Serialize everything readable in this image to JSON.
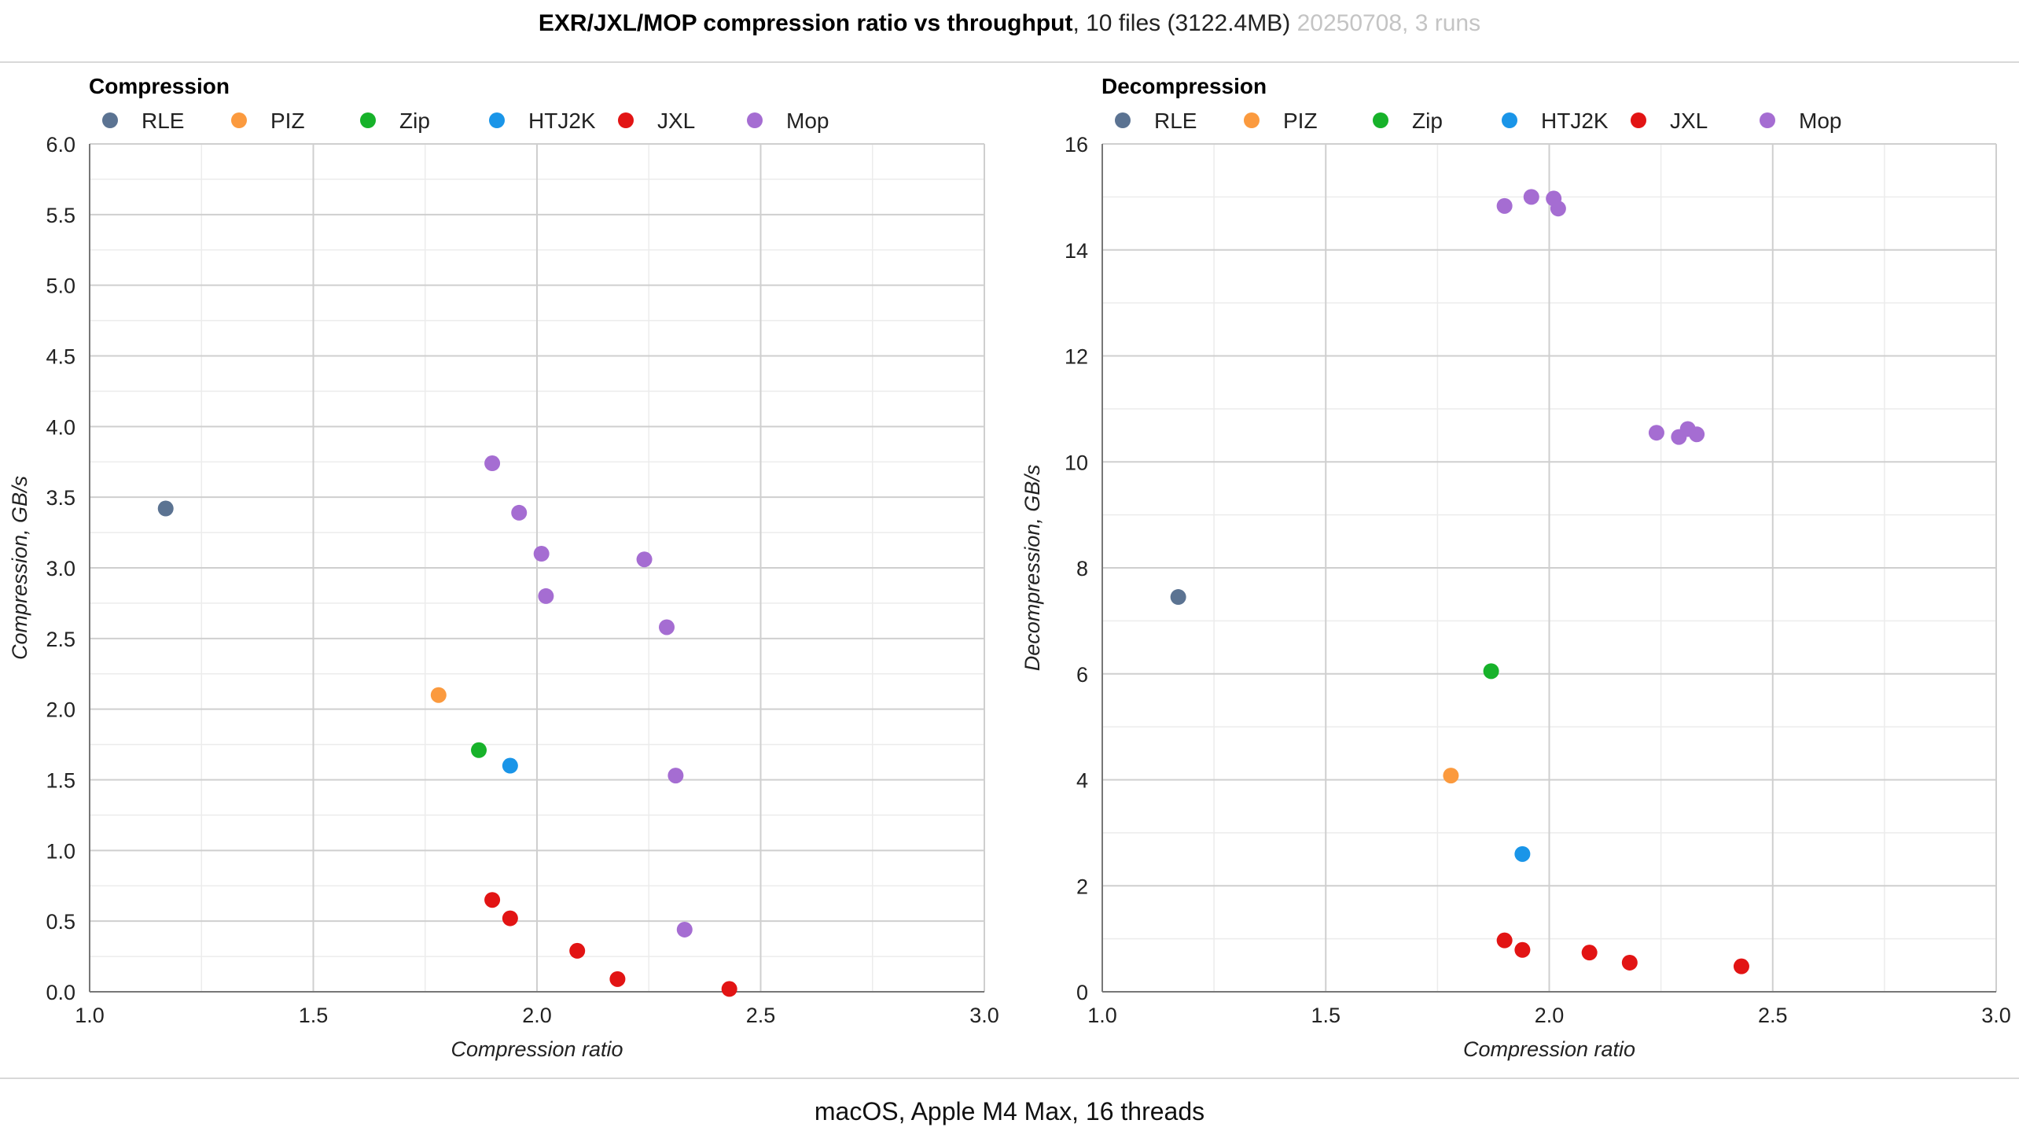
{
  "header": {
    "title_bold": "EXR/JXL/MOP compression ratio vs throughput",
    "title_rest": ", 10 files (3122.4MB) ",
    "title_muted": "20250708, 3 runs"
  },
  "footer": {
    "text": "macOS, Apple M4 Max, 16 threads"
  },
  "colors": {
    "RLE": "#5b7392",
    "PIZ": "#fb9a3e",
    "Zip": "#17b22a",
    "HTJ2K": "#1a95e8",
    "JXL": "#e21414",
    "Mop": "#a56dd2"
  },
  "chart_data": [
    {
      "type": "scatter",
      "title": "Compression",
      "xlabel": "Compression ratio",
      "ylabel": "Compression, GB/s",
      "xlim": [
        1.0,
        3.0
      ],
      "ylim": [
        0.0,
        6.0
      ],
      "xticks": [
        "1.0",
        "1.5",
        "2.0",
        "2.5",
        "3.0"
      ],
      "yticks": [
        "0.0",
        "0.5",
        "1.0",
        "1.5",
        "2.0",
        "2.5",
        "3.0",
        "3.5",
        "4.0",
        "4.5",
        "5.0",
        "5.5",
        "6.0"
      ],
      "legend_position": "top-left",
      "grid": true,
      "series": [
        {
          "name": "RLE",
          "points": [
            [
              1.17,
              3.42
            ]
          ]
        },
        {
          "name": "PIZ",
          "points": [
            [
              1.78,
              2.1
            ]
          ]
        },
        {
          "name": "Zip",
          "points": [
            [
              1.87,
              1.71
            ]
          ]
        },
        {
          "name": "HTJ2K",
          "points": [
            [
              1.94,
              1.6
            ]
          ]
        },
        {
          "name": "JXL",
          "points": [
            [
              1.9,
              0.65
            ],
            [
              1.94,
              0.52
            ],
            [
              2.09,
              0.29
            ],
            [
              2.18,
              0.09
            ],
            [
              2.43,
              0.02
            ]
          ]
        },
        {
          "name": "Mop",
          "points": [
            [
              1.9,
              3.74
            ],
            [
              1.96,
              3.39
            ],
            [
              2.01,
              3.1
            ],
            [
              2.02,
              2.8
            ],
            [
              2.24,
              3.06
            ],
            [
              2.29,
              2.58
            ],
            [
              2.31,
              1.53
            ],
            [
              2.33,
              0.44
            ]
          ]
        }
      ]
    },
    {
      "type": "scatter",
      "title": "Decompression",
      "xlabel": "Compression ratio",
      "ylabel": "Decompression, GB/s",
      "xlim": [
        1.0,
        3.0
      ],
      "ylim": [
        0,
        16
      ],
      "xticks": [
        "1.0",
        "1.5",
        "2.0",
        "2.5",
        "3.0"
      ],
      "yticks": [
        "0",
        "2",
        "4",
        "6",
        "8",
        "10",
        "12",
        "14",
        "16"
      ],
      "legend_position": "top-left",
      "grid": true,
      "series": [
        {
          "name": "RLE",
          "points": [
            [
              1.17,
              7.45
            ]
          ]
        },
        {
          "name": "PIZ",
          "points": [
            [
              1.78,
              4.08
            ]
          ]
        },
        {
          "name": "Zip",
          "points": [
            [
              1.87,
              6.05
            ]
          ]
        },
        {
          "name": "HTJ2K",
          "points": [
            [
              1.94,
              2.6
            ]
          ]
        },
        {
          "name": "JXL",
          "points": [
            [
              1.9,
              0.97
            ],
            [
              1.94,
              0.79
            ],
            [
              2.09,
              0.74
            ],
            [
              2.18,
              0.55
            ],
            [
              2.43,
              0.48
            ]
          ]
        },
        {
          "name": "Mop",
          "points": [
            [
              1.9,
              14.83
            ],
            [
              1.96,
              15.0
            ],
            [
              2.01,
              14.97
            ],
            [
              2.02,
              14.78
            ],
            [
              2.24,
              10.55
            ],
            [
              2.29,
              10.47
            ],
            [
              2.31,
              10.62
            ],
            [
              2.33,
              10.52
            ]
          ]
        }
      ]
    }
  ]
}
